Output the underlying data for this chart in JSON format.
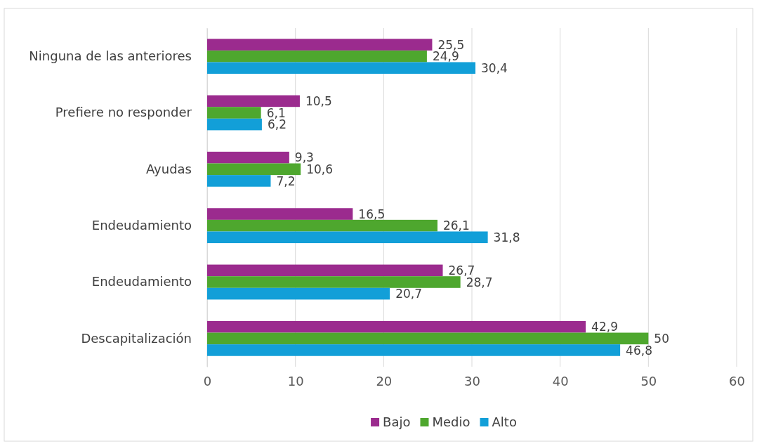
{
  "chart_data": {
    "type": "bar",
    "orientation": "horizontal",
    "categories": [
      "Ninguna de las anteriores",
      "Prefiere no responder",
      "Ayudas",
      "Endeudamiento",
      "Endeudamiento",
      "Descapitalización"
    ],
    "series": [
      {
        "name": "Bajo",
        "color": "#9b2b8e",
        "values": [
          25.5,
          10.5,
          9.3,
          16.5,
          26.7,
          42.9
        ],
        "value_labels": [
          "25,5",
          "10,5",
          "9,3",
          "16,5",
          "26,7",
          "42,9"
        ]
      },
      {
        "name": "Medio",
        "color": "#4ea72e",
        "values": [
          24.9,
          6.1,
          10.6,
          26.1,
          28.7,
          50
        ],
        "value_labels": [
          "24,9",
          "6,1",
          "10,6",
          "26,1",
          "28,7",
          "50"
        ]
      },
      {
        "name": "Alto",
        "color": "#129fd8",
        "values": [
          30.4,
          6.2,
          7.2,
          31.8,
          20.7,
          46.8
        ],
        "value_labels": [
          "30,4",
          "6,2",
          "7,2",
          "31,8",
          "20,7",
          "46,8"
        ]
      }
    ],
    "xlim": [
      0,
      60
    ],
    "xticks": [
      0,
      10,
      20,
      30,
      40,
      50,
      60
    ],
    "grid": "x",
    "legend": "bottom"
  }
}
